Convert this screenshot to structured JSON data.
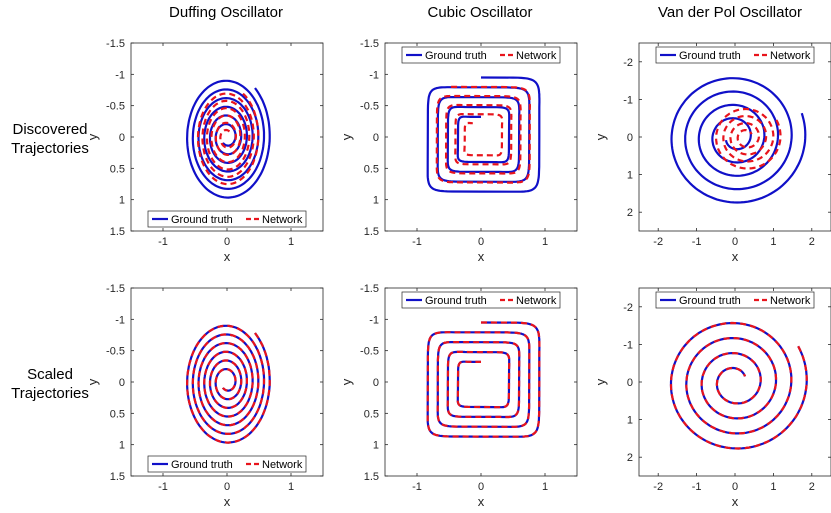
{
  "colors": {
    "ground_truth": "#1010c8",
    "network": "#e8141c"
  },
  "column_titles": [
    "Duffing Oscillator",
    "Cubic Oscillator",
    "Van der Pol Oscillator"
  ],
  "row_labels": [
    [
      "Discovered",
      "Trajectories"
    ],
    [
      "Scaled",
      "Trajectories"
    ]
  ],
  "chart_data": [
    {
      "type": "line",
      "title": "Duffing Oscillator",
      "row": 0,
      "xlabel": "x",
      "ylabel": "y",
      "xlim": [
        -1.5,
        1.5
      ],
      "ylim": [
        -1.5,
        1.5
      ],
      "y_reversed": true,
      "xticks": [
        -1,
        0,
        1
      ],
      "xticklabels": [
        "-1",
        "0",
        "1"
      ],
      "yticks": [
        -1.5,
        -1,
        -0.5,
        0,
        0.5,
        1,
        1.5
      ],
      "yticklabels": [
        "-1.5",
        "-1",
        "-0.5",
        "0",
        "0.5",
        "1",
        "1.5"
      ],
      "legend_location": "bottom",
      "legend": [
        "Ground truth",
        "Network"
      ],
      "series": [
        {
          "name": "Ground truth",
          "spiral": {
            "shape": "ellipse",
            "ax0": 0.68,
            "ay0": 1.02,
            "ax1": 0.1,
            "ay1": 0.12,
            "turns": 6.5,
            "start_deg": 310
          }
        },
        {
          "name": "Network",
          "spiral": {
            "shape": "ellipse",
            "ax0": 0.5,
            "ay0": 0.8,
            "ax1": 0.08,
            "ay1": 0.1,
            "turns": 6,
            "start_deg": 300
          }
        }
      ]
    },
    {
      "type": "line",
      "title": "Cubic Oscillator",
      "row": 0,
      "xlabel": "x",
      "ylabel": "y",
      "xlim": [
        -1.5,
        1.5
      ],
      "ylim": [
        -1.5,
        1.5
      ],
      "y_reversed": true,
      "xticks": [
        -1,
        0,
        1
      ],
      "xticklabels": [
        "-1",
        "0",
        "1"
      ],
      "yticks": [
        -1.5,
        -1,
        -0.5,
        0,
        0.5,
        1,
        1.5
      ],
      "yticklabels": [
        "-1.5",
        "-1",
        "-0.5",
        "0",
        "0.5",
        "1",
        "1.5"
      ],
      "legend_location": "top",
      "legend": [
        "Ground truth",
        "Network"
      ],
      "series": [
        {
          "name": "Ground truth",
          "spiral": {
            "shape": "square",
            "ax0": 0.95,
            "ay0": 0.95,
            "ax1": 0.32,
            "ay1": 0.32,
            "turns": 4,
            "start_deg": 270
          }
        },
        {
          "name": "Network",
          "spiral": {
            "shape": "square",
            "ax0": 0.8,
            "ay0": 0.8,
            "ax1": 0.22,
            "ay1": 0.22,
            "turns": 4,
            "start_deg": 265
          }
        }
      ]
    },
    {
      "type": "line",
      "title": "Van der Pol Oscillator",
      "row": 0,
      "xlabel": "x",
      "ylabel": "y",
      "xlim": [
        -2.5,
        2.5
      ],
      "ylim": [
        -2.5,
        2.5
      ],
      "y_reversed": true,
      "xticks": [
        -2,
        -1,
        0,
        1,
        2
      ],
      "xticklabels": [
        "-2",
        "-1",
        "0",
        "1",
        "2"
      ],
      "yticks": [
        -2,
        -1,
        0,
        1,
        2
      ],
      "yticklabels": [
        "-2",
        "-1",
        "0",
        "1",
        "2"
      ],
      "legend_location": "top",
      "legend": [
        "Ground truth",
        "Network"
      ],
      "series": [
        {
          "name": "Ground truth",
          "spiral": {
            "shape": "ellipse",
            "ax0": 1.85,
            "ay0": 1.85,
            "ax1": 0.25,
            "ay1": 0.25,
            "turns": 4.5,
            "start_deg": 340,
            "cx": 0.0,
            "cy": 0.0
          }
        },
        {
          "name": "Network",
          "spiral": {
            "shape": "ellipse",
            "ax0": 0.9,
            "ay0": 0.9,
            "ax1": 0.15,
            "ay1": 0.15,
            "turns": 4,
            "start_deg": 330,
            "cx": 0.3,
            "cy": 0.0
          }
        }
      ]
    },
    {
      "type": "line",
      "title": "Duffing Oscillator",
      "row": 1,
      "xlabel": "x",
      "ylabel": "y",
      "xlim": [
        -1.5,
        1.5
      ],
      "ylim": [
        -1.5,
        1.5
      ],
      "y_reversed": true,
      "xticks": [
        -1,
        0,
        1
      ],
      "xticklabels": [
        "-1",
        "0",
        "1"
      ],
      "yticks": [
        -1.5,
        -1,
        -0.5,
        0,
        0.5,
        1,
        1.5
      ],
      "yticklabels": [
        "-1.5",
        "-1",
        "-0.5",
        "0",
        "0.5",
        "1",
        "1.5"
      ],
      "legend_location": "bottom",
      "legend": [
        "Ground truth",
        "Network"
      ],
      "series": [
        {
          "name": "Ground truth",
          "spiral": {
            "shape": "ellipse",
            "ax0": 0.68,
            "ay0": 1.02,
            "ax1": 0.1,
            "ay1": 0.12,
            "turns": 6.5,
            "start_deg": 310
          }
        },
        {
          "name": "Network",
          "spiral": {
            "shape": "ellipse",
            "ax0": 0.68,
            "ay0": 1.02,
            "ax1": 0.1,
            "ay1": 0.12,
            "turns": 6.5,
            "start_deg": 310
          }
        }
      ]
    },
    {
      "type": "line",
      "title": "Cubic Oscillator",
      "row": 1,
      "xlabel": "x",
      "ylabel": "y",
      "xlim": [
        -1.5,
        1.5
      ],
      "ylim": [
        -1.5,
        1.5
      ],
      "y_reversed": true,
      "xticks": [
        -1,
        0,
        1
      ],
      "xticklabels": [
        "-1",
        "0",
        "1"
      ],
      "yticks": [
        -1.5,
        -1,
        -0.5,
        0,
        0.5,
        1,
        1.5
      ],
      "yticklabels": [
        "-1.5",
        "-1",
        "-0.5",
        "0",
        "0.5",
        "1",
        "1.5"
      ],
      "legend_location": "top",
      "legend": [
        "Ground truth",
        "Network"
      ],
      "series": [
        {
          "name": "Ground truth",
          "spiral": {
            "shape": "square",
            "ax0": 0.95,
            "ay0": 0.95,
            "ax1": 0.32,
            "ay1": 0.32,
            "turns": 4,
            "start_deg": 270
          }
        },
        {
          "name": "Network",
          "spiral": {
            "shape": "square",
            "ax0": 0.95,
            "ay0": 0.95,
            "ax1": 0.32,
            "ay1": 0.32,
            "turns": 4,
            "start_deg": 270
          }
        }
      ]
    },
    {
      "type": "line",
      "title": "Van der Pol Oscillator",
      "row": 1,
      "xlabel": "x",
      "ylabel": "y",
      "xlim": [
        -2.5,
        2.5
      ],
      "ylim": [
        -2.5,
        2.5
      ],
      "y_reversed": true,
      "xticks": [
        -2,
        -1,
        0,
        1,
        2
      ],
      "xticklabels": [
        "-2",
        "-1",
        "0",
        "1",
        "2"
      ],
      "yticks": [
        -2,
        -1,
        0,
        1,
        2
      ],
      "yticklabels": [
        "-2",
        "-1",
        "0",
        "1",
        "2"
      ],
      "legend_location": "top",
      "legend": [
        "Ground truth",
        "Network"
      ],
      "series": [
        {
          "name": "Ground truth",
          "spiral": {
            "shape": "ellipse",
            "ax0": 1.9,
            "ay0": 1.9,
            "ax1": 0.3,
            "ay1": 0.3,
            "turns": 4,
            "start_deg": 330,
            "cx": 0.0,
            "cy": 0.0
          }
        },
        {
          "name": "Network",
          "spiral": {
            "shape": "ellipse",
            "ax0": 1.9,
            "ay0": 1.9,
            "ax1": 0.3,
            "ay1": 0.3,
            "turns": 4,
            "start_deg": 330,
            "cx": 0.0,
            "cy": 0.0
          }
        }
      ]
    }
  ]
}
